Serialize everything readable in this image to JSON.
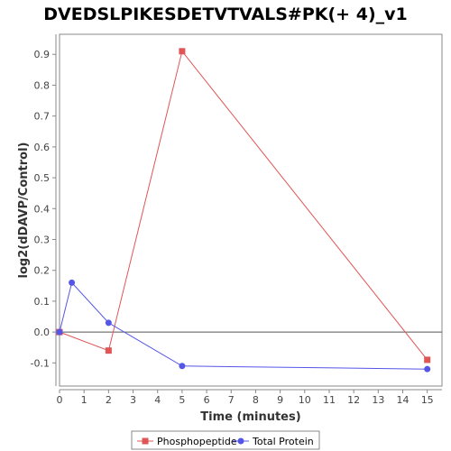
{
  "chart_data": {
    "type": "line",
    "title": "DVEDSLPIKESDETVTVALS#PK(+ 4)_v1",
    "xlabel": "Time (minutes)",
    "ylabel": "log2(dDAVP/Control)",
    "xlim": [
      0,
      15.6
    ],
    "ylim": [
      -0.175,
      0.965
    ],
    "x_ticks": [
      0,
      1,
      2,
      3,
      4,
      5,
      6,
      7,
      8,
      9,
      10,
      11,
      12,
      13,
      14,
      15
    ],
    "y_ticks": [
      -0.1,
      0.0,
      0.1,
      0.2,
      0.3,
      0.4,
      0.5,
      0.6,
      0.7,
      0.8,
      0.9
    ],
    "y_tick_labels": [
      "-0.1",
      "0.0",
      "0.1",
      "0.2",
      "0.3",
      "0.4",
      "0.5",
      "0.6",
      "0.7",
      "0.8",
      "0.9"
    ],
    "zero_line": true,
    "grid": false,
    "legend_position": "bottom",
    "series": [
      {
        "name": "Phosphopeptide",
        "color": "#e05555",
        "marker": "square",
        "x": [
          0,
          2,
          5,
          15
        ],
        "y": [
          0.0,
          -0.06,
          0.91,
          -0.09
        ]
      },
      {
        "name": "Total Protein",
        "color": "#5555e8",
        "marker": "circle",
        "x": [
          0,
          0.5,
          2,
          5,
          15
        ],
        "y": [
          0.0,
          0.16,
          0.03,
          -0.11,
          -0.12
        ]
      }
    ]
  }
}
